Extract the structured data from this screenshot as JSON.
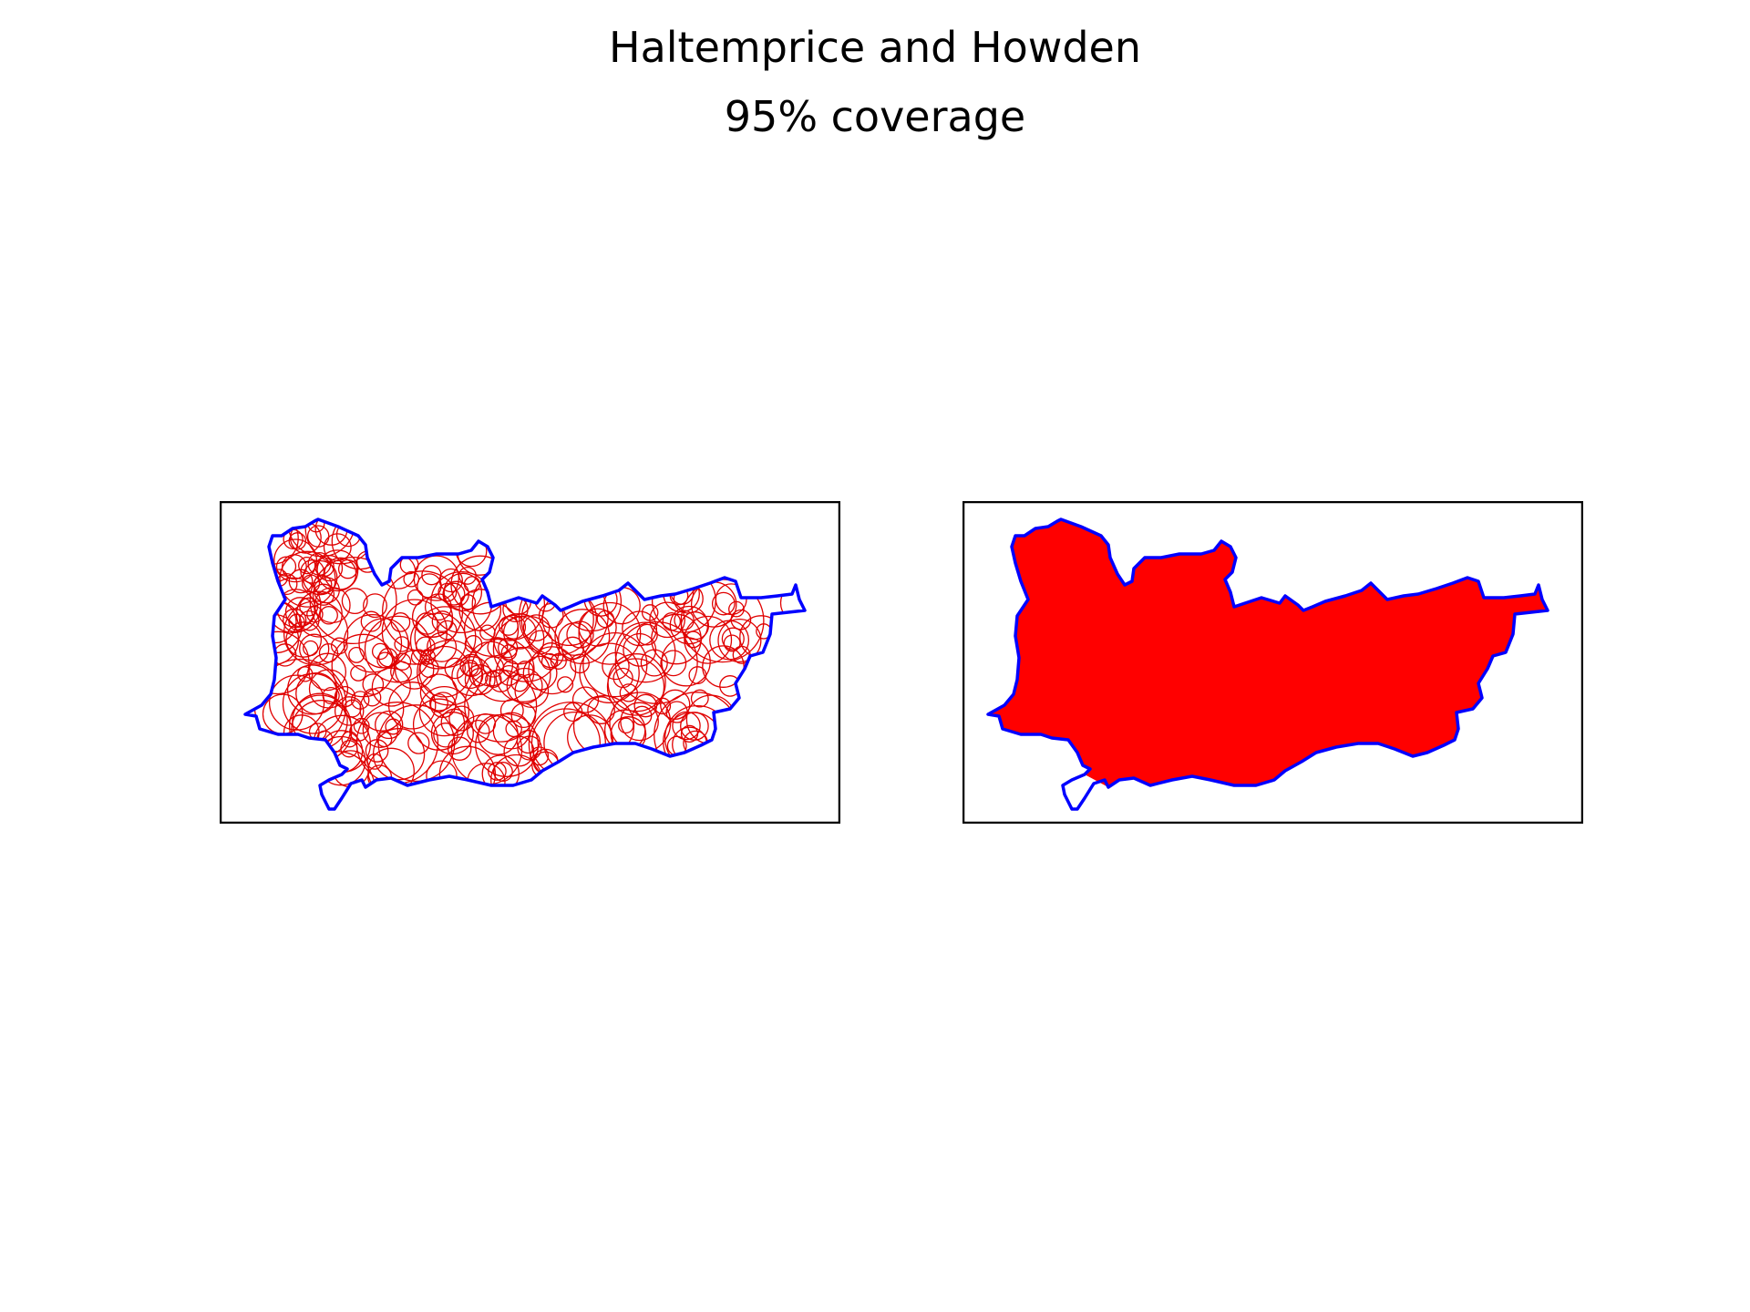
{
  "figure": {
    "title": "Haltemprice and Howden",
    "subtitle": "95% coverage"
  },
  "colors": {
    "boundary": "#0000ff",
    "coverage": "#ff0000",
    "frame": "#000000",
    "background": "#ffffff"
  },
  "panels": [
    {
      "name": "circle-coverage-map",
      "style": "circle-outlines"
    },
    {
      "name": "filled-coverage-map",
      "style": "filled"
    }
  ]
}
